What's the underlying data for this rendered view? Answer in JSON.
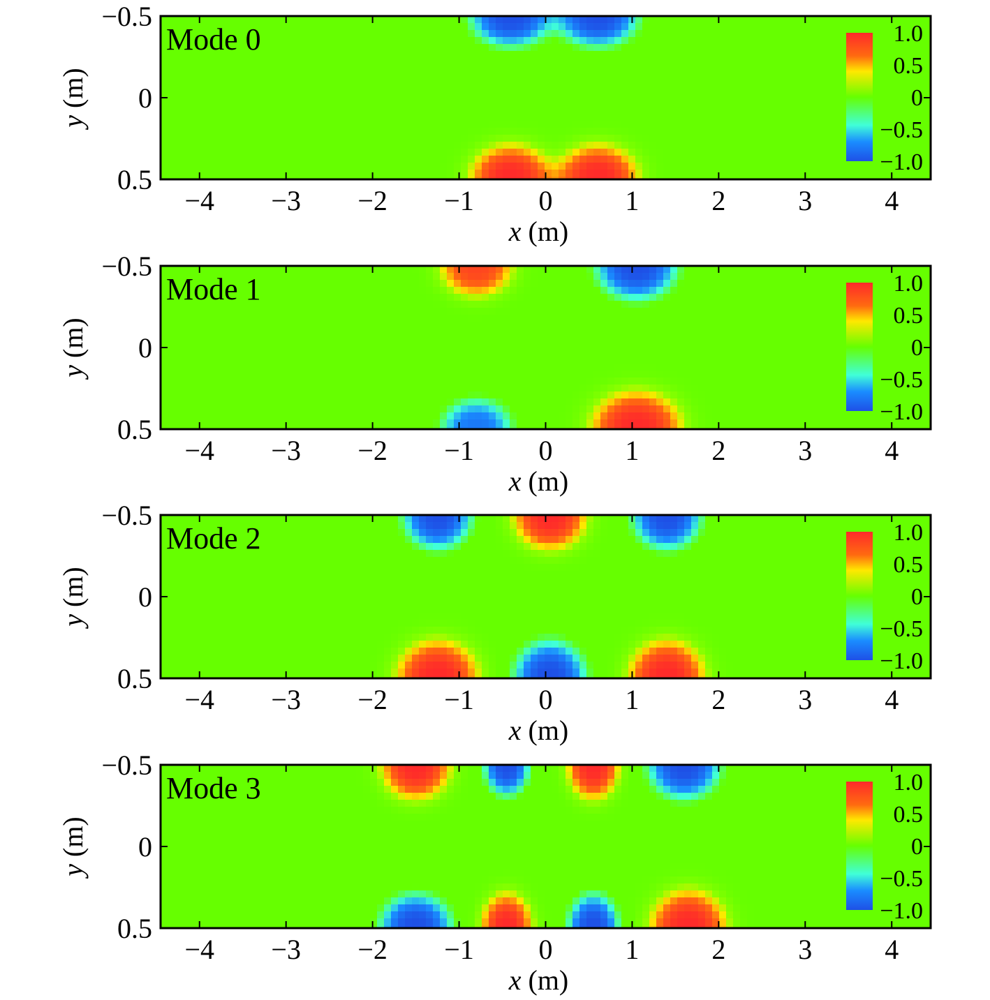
{
  "chart_data": [
    {
      "type": "heatmap",
      "title": "Mode 0",
      "xlabel": "x (m)",
      "ylabel": "y (m)",
      "xlim": [
        -4.45,
        4.45
      ],
      "ylim": [
        -0.5,
        0.5
      ],
      "y_inverted": true,
      "xticks": [
        -4,
        -3,
        -2,
        -1,
        0,
        1,
        2,
        3,
        4
      ],
      "xtick_labels": [
        "−4",
        "−3",
        "−2",
        "−1",
        "0",
        "1",
        "2",
        "3",
        "4"
      ],
      "yticks": [
        -0.5,
        0,
        0.5
      ],
      "ytick_labels": [
        "−0.5",
        "0",
        "0.5"
      ],
      "colorbar": {
        "ticks": [
          1.0,
          0.5,
          0,
          -0.5,
          -1.0
        ],
        "labels": [
          "1.0",
          "0.5",
          "0",
          "−0.5",
          "−1.0"
        ],
        "range": [
          -1.0,
          1.0
        ]
      },
      "lobes": [
        {
          "x": -0.4,
          "y": -0.5,
          "value": -1.0,
          "sx": 0.45,
          "sy": 0.18
        },
        {
          "x": 0.6,
          "y": -0.5,
          "value": -1.0,
          "sx": 0.45,
          "sy": 0.18
        },
        {
          "x": -0.4,
          "y": 0.5,
          "value": 1.0,
          "sx": 0.45,
          "sy": 0.2
        },
        {
          "x": 0.6,
          "y": 0.5,
          "value": 1.0,
          "sx": 0.45,
          "sy": 0.2
        }
      ]
    },
    {
      "type": "heatmap",
      "title": "Mode 1",
      "xlabel": "x (m)",
      "ylabel": "y (m)",
      "xlim": [
        -4.45,
        4.45
      ],
      "ylim": [
        -0.5,
        0.5
      ],
      "y_inverted": true,
      "xticks": [
        -4,
        -3,
        -2,
        -1,
        0,
        1,
        2,
        3,
        4
      ],
      "xtick_labels": [
        "−4",
        "−3",
        "−2",
        "−1",
        "0",
        "1",
        "2",
        "3",
        "4"
      ],
      "yticks": [
        -0.5,
        0,
        0.5
      ],
      "ytick_labels": [
        "−0.5",
        "0",
        "0.5"
      ],
      "colorbar": {
        "ticks": [
          1.0,
          0.5,
          0,
          -0.5,
          -1.0
        ],
        "labels": [
          "1.0",
          "0.5",
          "0",
          "−0.5",
          "−1.0"
        ],
        "range": [
          -1.0,
          1.0
        ]
      },
      "lobes": [
        {
          "x": -0.8,
          "y": -0.5,
          "value": 0.85,
          "sx": 0.4,
          "sy": 0.18
        },
        {
          "x": 1.05,
          "y": -0.5,
          "value": -1.0,
          "sx": 0.45,
          "sy": 0.2
        },
        {
          "x": -0.8,
          "y": 0.5,
          "value": -0.8,
          "sx": 0.4,
          "sy": 0.18
        },
        {
          "x": 1.05,
          "y": 0.5,
          "value": 1.0,
          "sx": 0.5,
          "sy": 0.22
        }
      ]
    },
    {
      "type": "heatmap",
      "title": "Mode 2",
      "xlabel": "x (m)",
      "ylabel": "y (m)",
      "xlim": [
        -4.45,
        4.45
      ],
      "ylim": [
        -0.5,
        0.5
      ],
      "y_inverted": true,
      "xticks": [
        -4,
        -3,
        -2,
        -1,
        0,
        1,
        2,
        3,
        4
      ],
      "xtick_labels": [
        "−4",
        "−3",
        "−2",
        "−1",
        "0",
        "1",
        "2",
        "3",
        "4"
      ],
      "yticks": [
        -0.5,
        0,
        0.5
      ],
      "ytick_labels": [
        "−0.5",
        "0",
        "0.5"
      ],
      "colorbar": {
        "ticks": [
          1.0,
          0.5,
          0,
          -0.5,
          -1.0
        ],
        "labels": [
          "1.0",
          "0.5",
          "0",
          "−0.5",
          "−1.0"
        ],
        "range": [
          -1.0,
          1.0
        ]
      },
      "lobes": [
        {
          "x": -1.25,
          "y": -0.5,
          "value": -1.0,
          "sx": 0.38,
          "sy": 0.2
        },
        {
          "x": 0.05,
          "y": -0.5,
          "value": 1.0,
          "sx": 0.4,
          "sy": 0.2
        },
        {
          "x": 1.4,
          "y": -0.5,
          "value": -1.0,
          "sx": 0.38,
          "sy": 0.2
        },
        {
          "x": -1.25,
          "y": 0.5,
          "value": 1.0,
          "sx": 0.45,
          "sy": 0.22
        },
        {
          "x": 0.05,
          "y": 0.5,
          "value": -1.0,
          "sx": 0.4,
          "sy": 0.22
        },
        {
          "x": 1.4,
          "y": 0.5,
          "value": 1.0,
          "sx": 0.42,
          "sy": 0.22
        }
      ]
    },
    {
      "type": "heatmap",
      "title": "Mode 3",
      "xlabel": "x (m)",
      "ylabel": "y (m)",
      "xlim": [
        -4.45,
        4.45
      ],
      "ylim": [
        -0.5,
        0.5
      ],
      "y_inverted": true,
      "xticks": [
        -4,
        -3,
        -2,
        -1,
        0,
        1,
        2,
        3,
        4
      ],
      "xtick_labels": [
        "−4",
        "−3",
        "−2",
        "−1",
        "0",
        "1",
        "2",
        "3",
        "4"
      ],
      "yticks": [
        -0.5,
        0,
        0.5
      ],
      "ytick_labels": [
        "−0.5",
        "0",
        "0.5"
      ],
      "colorbar": {
        "ticks": [
          1.0,
          0.5,
          0,
          -0.5,
          -1.0
        ],
        "labels": [
          "1.0",
          "0.5",
          "0",
          "−0.5",
          "−1.0"
        ],
        "range": [
          -1.0,
          1.0
        ]
      },
      "lobes": [
        {
          "x": -1.5,
          "y": -0.5,
          "value": 1.0,
          "sx": 0.38,
          "sy": 0.2
        },
        {
          "x": -0.45,
          "y": -0.5,
          "value": -1.0,
          "sx": 0.25,
          "sy": 0.18
        },
        {
          "x": 0.55,
          "y": -0.5,
          "value": 1.0,
          "sx": 0.28,
          "sy": 0.2
        },
        {
          "x": 1.6,
          "y": -0.5,
          "value": -1.0,
          "sx": 0.4,
          "sy": 0.2
        },
        {
          "x": -1.5,
          "y": 0.5,
          "value": -1.0,
          "sx": 0.4,
          "sy": 0.2
        },
        {
          "x": -0.45,
          "y": 0.5,
          "value": 1.0,
          "sx": 0.28,
          "sy": 0.2
        },
        {
          "x": 0.55,
          "y": 0.5,
          "value": -1.0,
          "sx": 0.28,
          "sy": 0.2
        },
        {
          "x": 1.65,
          "y": 0.5,
          "value": 1.0,
          "sx": 0.42,
          "sy": 0.22
        }
      ]
    }
  ]
}
